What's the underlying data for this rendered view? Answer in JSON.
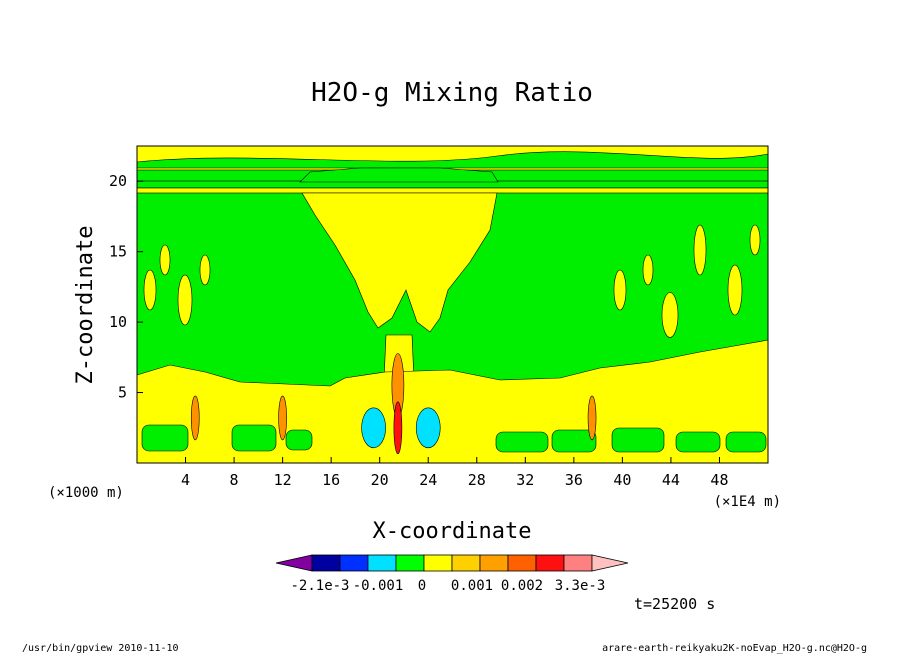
{
  "chart_data": {
    "type": "heatmap",
    "title": "H2O-g Mixing Ratio",
    "xlabel": "X-coordinate",
    "ylabel": "Z-coordinate",
    "x_unit_left": "(×1000 m)",
    "x_unit_right": "(×1E4 m)",
    "xlim": [
      0,
      52
    ],
    "ylim": [
      0,
      22.5
    ],
    "x_ticks": [
      4,
      8,
      12,
      16,
      20,
      24,
      28,
      32,
      36,
      40,
      44,
      48
    ],
    "y_ticks": [
      5,
      10,
      15,
      20
    ],
    "time_label": "t=25200 s",
    "footer_left": "/usr/bin/gpview  2010-11-10",
    "footer_right": "arare-earth-reikyaku2K-noEvap_H2O-g.nc@H2O-g",
    "colorbar": {
      "levels": [
        "-2.1e-3",
        "-0.001",
        "0",
        "0.001",
        "0.002",
        "3.3e-3"
      ],
      "colors": [
        "#8000a0",
        "#0000a0",
        "#0030ff",
        "#00e0ff",
        "#00ff00",
        "#ffff00",
        "#ffd000",
        "#ffa000",
        "#ff6000",
        "#ff1010",
        "#ff8080",
        "#ffc0c0"
      ]
    },
    "fields": {
      "background": "#00ee00",
      "positive": "#ffff00",
      "strong_positive": "#ff9000",
      "negative": "#00e0ff"
    }
  }
}
